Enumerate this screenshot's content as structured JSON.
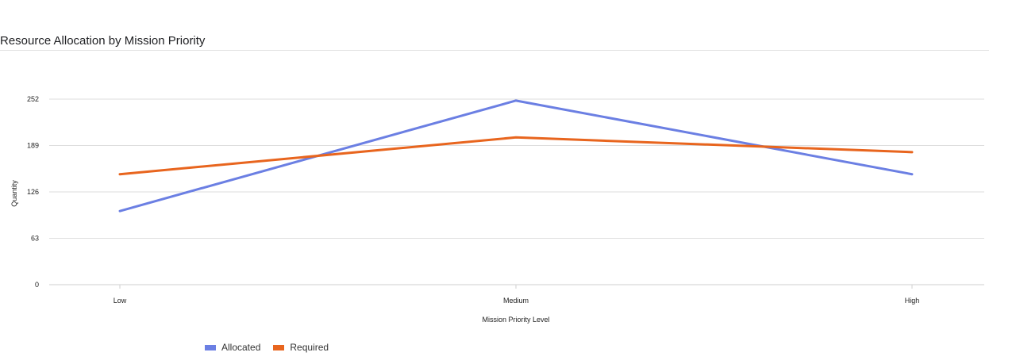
{
  "chart_data": {
    "type": "line",
    "title": "Resource Allocation by Mission Priority",
    "xlabel": "Mission Priority Level",
    "ylabel": "Quantity",
    "categories": [
      "Low",
      "Medium",
      "High"
    ],
    "yticks": [
      "0",
      "63",
      "126",
      "189",
      "252"
    ],
    "ylim": [
      0,
      252
    ],
    "grid": true,
    "legend_position": "bottom-left",
    "series": [
      {
        "name": "Allocated",
        "color": "#6b7fe3",
        "values": [
          100,
          250,
          150
        ]
      },
      {
        "name": "Required",
        "color": "#e8651e",
        "values": [
          150,
          200,
          180
        ]
      }
    ]
  }
}
